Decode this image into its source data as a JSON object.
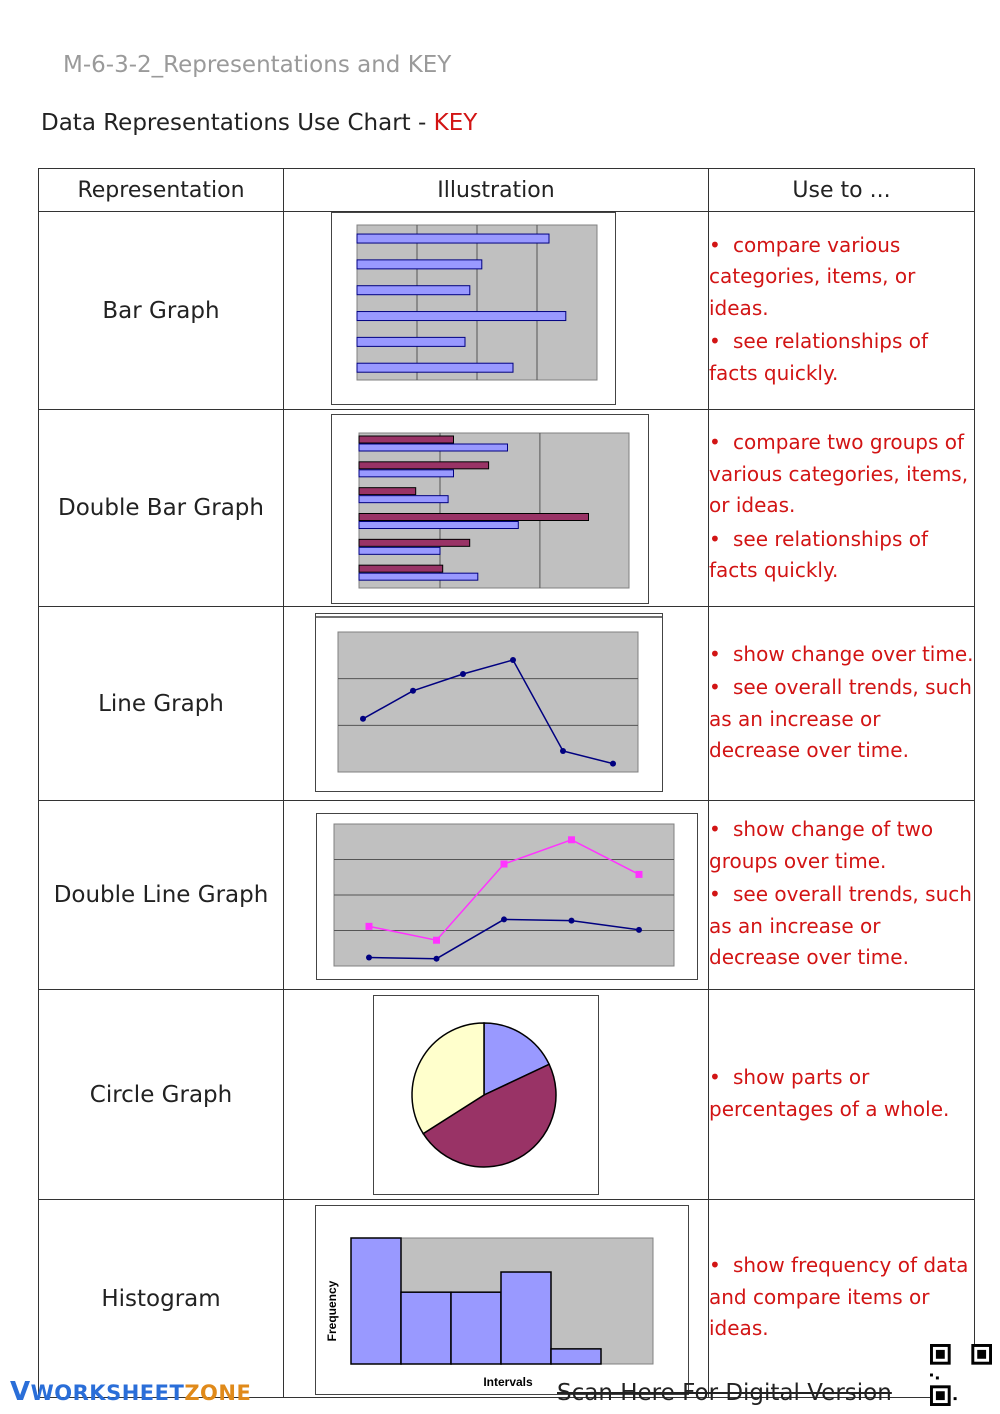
{
  "doc_id": "M-6-3-2_Representations and KEY",
  "heading": {
    "text": "Data Representations Use Chart - ",
    "key": "KEY"
  },
  "table": {
    "headers": [
      "Representation",
      "Illustration",
      "Use to ..."
    ],
    "rows": [
      {
        "name": "Bar Graph",
        "uses": [
          "compare various categories, items, or ideas.",
          "see relationships of facts quickly."
        ]
      },
      {
        "name": "Double Bar Graph",
        "uses": [
          "compare two groups of various categories, items, or ideas.",
          "see relationships of facts quickly."
        ]
      },
      {
        "name": "Line Graph",
        "uses": [
          "show change over time.",
          "see overall trends, such as an increase or decrease over time."
        ]
      },
      {
        "name": "Double Line Graph",
        "uses": [
          "show change of two groups over time.",
          "see overall trends, such as an increase or decrease over time."
        ]
      },
      {
        "name": "Circle Graph",
        "uses": [
          "show parts or percentages of a whole."
        ]
      },
      {
        "name": "Histogram",
        "uses": [
          "show frequency of data and compare items or ideas."
        ]
      }
    ]
  },
  "illustrations": {
    "bar": {
      "values": [
        0.8,
        0.52,
        0.47,
        0.87,
        0.45,
        0.65
      ],
      "color": "#9999ff"
    },
    "double_bar": {
      "series_a": [
        0.35,
        0.48,
        0.21,
        0.85,
        0.41,
        0.31
      ],
      "series_b": [
        0.55,
        0.35,
        0.33,
        0.59,
        0.3,
        0.44
      ],
      "color_a": "#993366",
      "color_b": "#9999ff"
    },
    "line": {
      "values": [
        0.38,
        0.58,
        0.7,
        0.8,
        0.15,
        0.06
      ],
      "color": "#000080"
    },
    "double_line": {
      "series_a": [
        0.3,
        0.18,
        0.84,
        1.05,
        0.75
      ],
      "series_b": [
        0.03,
        0.02,
        0.36,
        0.35,
        0.27
      ],
      "color_a": "#ff33ff",
      "color_b": "#000080"
    },
    "circle": {
      "slices": [
        {
          "fraction": 0.18,
          "color": "#9999ff"
        },
        {
          "fraction": 0.48,
          "color": "#993366"
        },
        {
          "fraction": 0.34,
          "color": "#ffffcc"
        }
      ]
    },
    "histogram": {
      "values": [
        1.0,
        0.57,
        0.57,
        0.73,
        0.12
      ],
      "xlabel": "Intervals",
      "ylabel": "Frequency",
      "color": "#9999ff"
    }
  },
  "footer": {
    "logo_v": "V",
    "logo_worksheet": "WORKSHEET",
    "logo_zone": "ZONE",
    "scan_text": "Scan Here For Digital Version"
  }
}
